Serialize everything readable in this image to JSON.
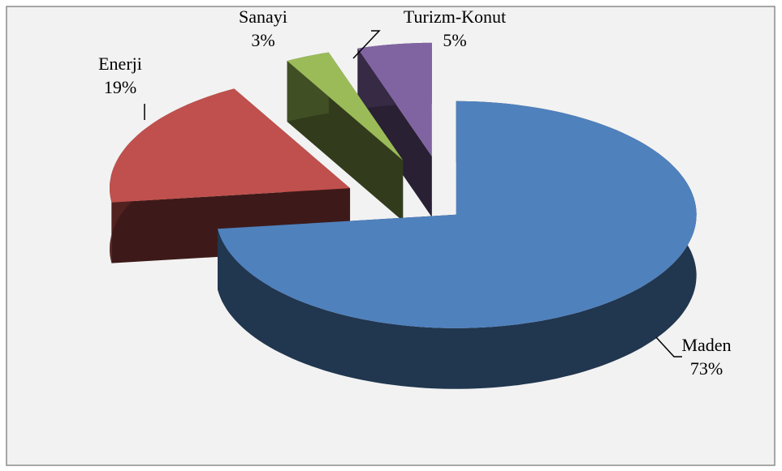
{
  "chart_data": {
    "type": "pie3d",
    "categories": [
      "Maden",
      "Enerji",
      "Sanayi",
      "Turizm-Konut"
    ],
    "values": [
      73,
      19,
      3,
      5
    ],
    "value_labels": [
      "73%",
      "19%",
      "3%",
      "5%"
    ],
    "colors": [
      "#4f81bd",
      "#c0504d",
      "#9bbb59",
      "#8064a2"
    ]
  }
}
